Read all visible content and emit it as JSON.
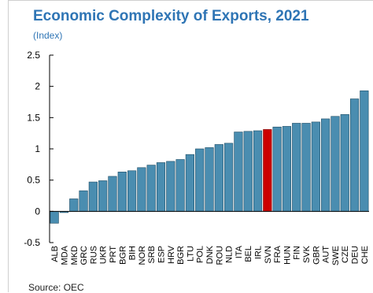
{
  "chart_data": {
    "type": "bar",
    "title": "Economic Complexity of Exports, 2021",
    "subtitle": "(Index)",
    "source": "Source: OEC",
    "xlabel": "",
    "ylabel": "",
    "ylim": [
      -0.5,
      2.5
    ],
    "yticks": [
      "2.5",
      "2",
      "1.5",
      "1",
      "0.5",
      "0",
      "-0.5"
    ],
    "ytick_values": [
      2.5,
      2,
      1.5,
      1,
      0.5,
      0,
      -0.5
    ],
    "grid": false,
    "legend": "none",
    "categories": [
      "ALB",
      "MDA",
      "MKD",
      "GRC",
      "RUS",
      "UKR",
      "PRT",
      "BGR",
      "BIH",
      "NOR",
      "SRB",
      "ESP",
      "HRV",
      "BGR",
      "LTU",
      "POL",
      "DNK",
      "ROU",
      "NLD",
      "ITA",
      "BEL",
      "IRL",
      "SVN",
      "FRA",
      "HUN",
      "FIN",
      "SVK",
      "GBR",
      "AUT",
      "SWE",
      "CZE",
      "DEU",
      "CHE"
    ],
    "values": [
      -0.19,
      -0.02,
      0.2,
      0.33,
      0.47,
      0.49,
      0.56,
      0.63,
      0.65,
      0.7,
      0.74,
      0.78,
      0.8,
      0.83,
      0.91,
      1.0,
      1.02,
      1.07,
      1.09,
      1.27,
      1.28,
      1.29,
      1.31,
      1.35,
      1.36,
      1.41,
      1.41,
      1.43,
      1.48,
      1.52,
      1.55,
      1.8,
      1.93
    ],
    "highlight_index": 22,
    "colors": {
      "bar": "#4a8db0",
      "bar_outline": "#1c4b63",
      "highlight": "#cc0000",
      "highlight_outline": "#7a0000",
      "axis": "#000000",
      "title": "#2f75b5"
    }
  }
}
